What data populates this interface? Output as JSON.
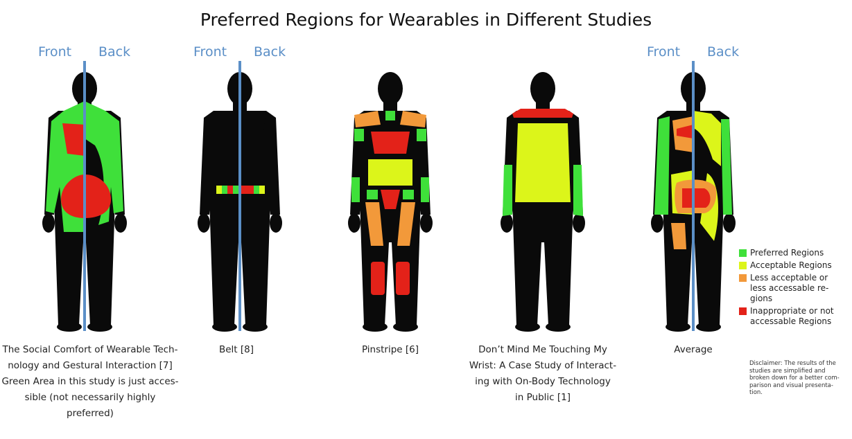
{
  "title": "Preferred Regions for Wearables in Different Studies",
  "front_label": "Front",
  "back_label": "Back",
  "figures": [
    {
      "caption": [
        "The Social Comfort of Wearable Tech-",
        "nology and Gestural Interaction [7]",
        "Green Area in this study is just acces-",
        "sible (not necessarily highly preferred)"
      ]
    },
    {
      "caption": [
        "Belt [8]"
      ]
    },
    {
      "caption": [
        "Pinstripe [6]"
      ]
    },
    {
      "caption": [
        "Don’t Mind Me Touching My",
        "Wrist: A Case Study of Interact-",
        "ing with On-Body Technology",
        "in Public [1]"
      ]
    },
    {
      "caption": [
        "Average"
      ]
    }
  ],
  "legend": [
    {
      "label": [
        "Preferred Regions"
      ],
      "color": "#3fe03a"
    },
    {
      "label": [
        "Acceptable Regions"
      ],
      "color": "#dcf51a"
    },
    {
      "label": [
        "Less acceptable or",
        "less accessable re-",
        "gions"
      ],
      "color": "#f2993a"
    },
    {
      "label": [
        "Inappropriate or not",
        "accessable Regions"
      ],
      "color": "#e32219"
    }
  ],
  "disclaimer": [
    "Disclaimer: The results of the",
    "studies are simplified and",
    "broken down for a better com-",
    "parison and visual presenta-",
    "tion."
  ],
  "colors": {
    "body": "#0a0a0a",
    "axis": "#5b8fc7",
    "preferred": "#3fe03a",
    "acceptable": "#dcf51a",
    "less": "#f2993a",
    "inappropriate": "#e32219"
  }
}
